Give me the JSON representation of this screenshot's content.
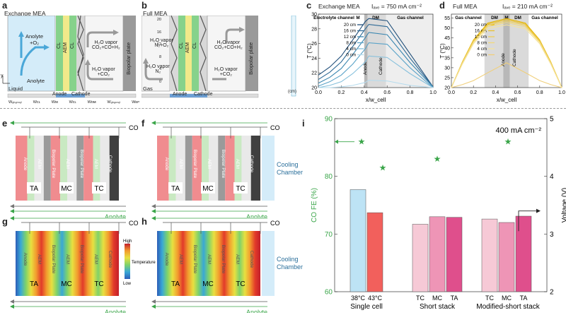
{
  "panels": {
    "a": {
      "letter": "a",
      "title": "Exchange MEA",
      "anolyte_top": [
        "Anolyte",
        "+O₂"
      ],
      "anolyte_bottom": "Anolyte",
      "liquid": "Liquid",
      "layers": [
        "CL",
        "AEM",
        "CL"
      ],
      "anode": "Anode",
      "cathode": "Cathode",
      "vapor_top": [
        "H₂O vapor",
        "CO₂+CO+H₂"
      ],
      "vapor_bottom": [
        "H₂O vapor",
        "+CO₂"
      ],
      "bipolar": "Biopolar plate",
      "y_axis": "y",
      "x_axis": "x",
      "widths": [
        "Wₐₕₐₙₙₑₗ",
        "Wᴄʟ",
        "Wᴍ",
        "Wᴄʟ",
        "Wᴅᴍ",
        "Wₐₕₐₙₙₑₗ",
        "Wᴇᴘ"
      ]
    },
    "b": {
      "letter": "b",
      "title": "Full MEA",
      "n2_top": [
        "H₂O vapor",
        "N₂+O₂"
      ],
      "n2_bottom": [
        "H₂O vapor",
        "N₂"
      ],
      "gas": "Gas",
      "layers": [
        "CL",
        "AEM",
        "CL"
      ],
      "anode": "Anode",
      "cathode": "Cathode",
      "vapor_top": [
        "H₂O vapor",
        "CO₂+CO+H₂"
      ],
      "vapor_bottom": [
        "H₂O vapor",
        "+CO₂"
      ],
      "bipolar": "Biopolar plate",
      "scale_ticks": [
        "20",
        "16",
        "12",
        "8",
        "4",
        "0"
      ],
      "scale_unit": "(cm)"
    },
    "c": {
      "letter": "c",
      "title": "Exchange MEA",
      "current": "Iₐᵥₑ = 750 mA cm⁻²"
    },
    "d": {
      "letter": "d",
      "title": "Full MEA",
      "current": "Iₐᵥₑ = 210 mA cm⁻²"
    },
    "e": {
      "letter": "e"
    },
    "f": {
      "letter": "f"
    },
    "g": {
      "letter": "g"
    },
    "h": {
      "letter": "h"
    },
    "i": {
      "letter": "i"
    }
  },
  "stack": {
    "co2": "CO₂",
    "anolyte": "Anolyte",
    "cells": [
      "TA",
      "MC",
      "TC"
    ],
    "layer_labels": [
      "Anode",
      "AEM",
      "Biopolar Plate",
      "AEM",
      "Biopolar Plate",
      "AEM",
      "Cathode"
    ],
    "cooling": [
      "Cooling",
      "Chamber"
    ],
    "colorbar_high": "High",
    "colorbar_low": "Low",
    "colorbar_label": "Temperature"
  },
  "chart_data": [
    {
      "type": "line",
      "panel": "c",
      "xlabel": "x/w_cell",
      "ylabel": "T (°C)",
      "xlim": [
        0.0,
        1.0
      ],
      "ylim": [
        20,
        30
      ],
      "xticks": [
        "0.0",
        "0.2",
        "0.4",
        "0.6",
        "0.8",
        "1.0"
      ],
      "yticks": [
        "20",
        "22",
        "24",
        "26",
        "28",
        "30"
      ],
      "regions": [
        "Electrolyte channel",
        "M",
        "DM",
        "Gas channel"
      ],
      "region_labels": [
        "Anode",
        "Cathode"
      ],
      "legend": "top-left",
      "series": [
        {
          "name": "20 cm",
          "x": [
            0,
            0.1,
            0.2,
            0.3,
            0.41,
            0.44,
            0.6,
            0.8,
            1.0
          ],
          "y": [
            21.7,
            22.8,
            24.3,
            26.5,
            29.0,
            29.4,
            29.1,
            24.6,
            20.1
          ]
        },
        {
          "name": "16 cm",
          "x": [
            0,
            0.1,
            0.2,
            0.3,
            0.41,
            0.44,
            0.6,
            0.8,
            1.0
          ],
          "y": [
            21.1,
            22.1,
            23.5,
            25.6,
            28.0,
            28.6,
            28.3,
            24.0,
            20.1
          ]
        },
        {
          "name": "12 cm",
          "x": [
            0,
            0.1,
            0.2,
            0.3,
            0.41,
            0.44,
            0.6,
            0.8,
            1.0
          ],
          "y": [
            20.6,
            21.4,
            22.6,
            24.5,
            26.8,
            27.5,
            27.2,
            23.4,
            20.1
          ]
        },
        {
          "name": "8 cm",
          "x": [
            0,
            0.1,
            0.2,
            0.3,
            0.41,
            0.44,
            0.6,
            0.8,
            1.0
          ],
          "y": [
            20.2,
            20.8,
            21.7,
            23.2,
            25.3,
            26.1,
            25.9,
            22.7,
            20.0
          ]
        },
        {
          "name": "4 cm",
          "x": [
            0,
            0.1,
            0.2,
            0.3,
            0.41,
            0.44,
            0.6,
            0.8,
            1.0
          ],
          "y": [
            20.0,
            20.3,
            20.8,
            21.9,
            23.5,
            24.3,
            24.1,
            21.9,
            20.0
          ]
        },
        {
          "name": "0 cm",
          "x": [
            0,
            0.1,
            0.2,
            0.3,
            0.41,
            0.44,
            0.6,
            0.8,
            1.0
          ],
          "y": [
            20.0,
            20.0,
            20.1,
            20.3,
            20.7,
            21.0,
            20.9,
            20.3,
            20.0
          ]
        }
      ]
    },
    {
      "type": "line",
      "panel": "d",
      "xlabel": "x/w_cell",
      "ylabel": "T (°C)",
      "xlim": [
        0.0,
        1.0
      ],
      "ylim": [
        20,
        57
      ],
      "xticks": [
        "0.0",
        "0.2",
        "0.4",
        "0.6",
        "0.8",
        "1.0"
      ],
      "yticks": [
        "20",
        "25",
        "30",
        "35",
        "40",
        "45",
        "50",
        "55"
      ],
      "regions": [
        "Gas channel",
        "DM",
        "M",
        "DM",
        "Gas channel"
      ],
      "region_labels": [
        "Anode",
        "Cathode"
      ],
      "legend": "top-left",
      "series": [
        {
          "name": "20 cm",
          "x": [
            0,
            0.1,
            0.2,
            0.33,
            0.5,
            0.67,
            0.8,
            0.9,
            1.0
          ],
          "y": [
            20.0,
            33.0,
            44.0,
            52.5,
            54.8,
            52.5,
            44.0,
            33.0,
            20.0
          ]
        },
        {
          "name": "16 cm",
          "x": [
            0,
            0.1,
            0.2,
            0.33,
            0.5,
            0.67,
            0.8,
            0.9,
            1.0
          ],
          "y": [
            20.0,
            32.8,
            43.7,
            52.0,
            54.2,
            52.0,
            43.7,
            32.8,
            20.0
          ]
        },
        {
          "name": "12 cm",
          "x": [
            0,
            0.1,
            0.2,
            0.33,
            0.5,
            0.67,
            0.8,
            0.9,
            1.0
          ],
          "y": [
            20.0,
            32.6,
            43.3,
            51.4,
            53.5,
            51.4,
            43.3,
            32.6,
            20.0
          ]
        },
        {
          "name": "8 cm",
          "x": [
            0,
            0.1,
            0.2,
            0.33,
            0.5,
            0.67,
            0.8,
            0.9,
            1.0
          ],
          "y": [
            20.0,
            32.3,
            42.8,
            50.7,
            52.7,
            50.7,
            42.8,
            32.3,
            20.0
          ]
        },
        {
          "name": "4 cm",
          "x": [
            0,
            0.1,
            0.2,
            0.33,
            0.5,
            0.67,
            0.8,
            0.9,
            1.0
          ],
          "y": [
            20.0,
            31.9,
            42.1,
            49.7,
            51.6,
            49.7,
            42.1,
            31.9,
            20.0
          ]
        },
        {
          "name": "0 cm",
          "x": [
            0,
            0.1,
            0.2,
            0.33,
            0.5,
            0.67,
            0.8,
            0.9,
            1.0
          ],
          "y": [
            20.0,
            21.5,
            23.5,
            27.5,
            32.5,
            27.5,
            23.5,
            21.5,
            20.0
          ]
        }
      ]
    },
    {
      "type": "bar",
      "panel": "i",
      "ylabel": "CO FE (%)",
      "ylabel_right": "Voltage (V)",
      "ylim": [
        60,
        90
      ],
      "ylim_right": [
        2,
        5
      ],
      "yticks": [
        "60",
        "70",
        "80",
        "90"
      ],
      "yticks_right": [
        "2",
        "3",
        "4",
        "5"
      ],
      "annotation": "400 mA cm⁻²",
      "groups": [
        "Single cell",
        "Short stack",
        "Modified-short stack"
      ],
      "categories": [
        "38°C",
        "43°C",
        "TC",
        "MC",
        "TA",
        "TC",
        "MC",
        "TA"
      ],
      "fe_values": [
        77.7,
        73.7,
        71.7,
        73.0,
        72.9,
        72.6,
        72.0,
        73.1
      ],
      "voltage_values": [
        4.6,
        4.15,
        4.3,
        4.6
      ],
      "colors": [
        "#bde3f5",
        "#f2605c",
        "#f6c9d6",
        "#ee95b6",
        "#df4f8c",
        "#f6c9d6",
        "#ee95b6",
        "#df4f8c"
      ]
    }
  ]
}
